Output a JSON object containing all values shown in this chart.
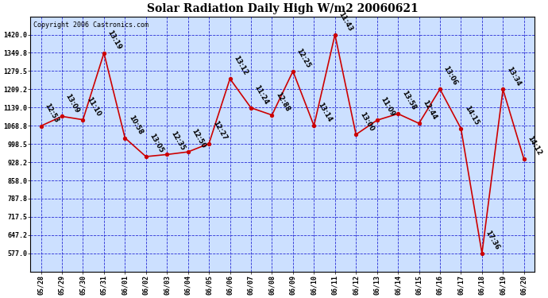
{
  "title": "Solar Radiation Daily High W/m2 20060621",
  "copyright": "Copyright 2006 Castronics.com",
  "background_color": "#ffffff",
  "plot_bg_color": "#cce0ff",
  "grid_color": "#0000cc",
  "line_color": "#cc0000",
  "marker_color": "#cc0000",
  "dates": [
    "05/28",
    "05/29",
    "05/30",
    "05/31",
    "06/01",
    "06/02",
    "06/03",
    "06/04",
    "06/05",
    "06/06",
    "06/07",
    "06/08",
    "06/09",
    "06/10",
    "06/11",
    "06/12",
    "06/13",
    "06/14",
    "06/15",
    "06/16",
    "06/17",
    "06/18",
    "06/19",
    "06/20"
  ],
  "values": [
    1068,
    1105,
    1092,
    1349,
    1022,
    950,
    958,
    968,
    1000,
    1250,
    1138,
    1110,
    1279,
    1069,
    1420,
    1035,
    1090,
    1115,
    1078,
    1210,
    1058,
    577,
    1209,
    940
  ],
  "times": [
    "12:53",
    "13:09",
    "11:10",
    "13:19",
    "10:58",
    "13:05",
    "12:35",
    "12:50",
    "12:27",
    "13:12",
    "11:24",
    "12:88",
    "12:25",
    "13:14",
    "11:43",
    "13:00",
    "11:09",
    "13:58",
    "12:44",
    "13:06",
    "14:15",
    "17:36",
    "13:34",
    "14:12"
  ],
  "ylim": [
    507,
    1490
  ],
  "yticks": [
    577.0,
    647.2,
    717.5,
    787.8,
    858.0,
    928.2,
    998.5,
    1068.8,
    1139.0,
    1209.2,
    1279.5,
    1349.8,
    1420.0
  ],
  "title_fontsize": 10,
  "tick_fontsize": 6,
  "annot_fontsize": 6,
  "copyright_fontsize": 6
}
